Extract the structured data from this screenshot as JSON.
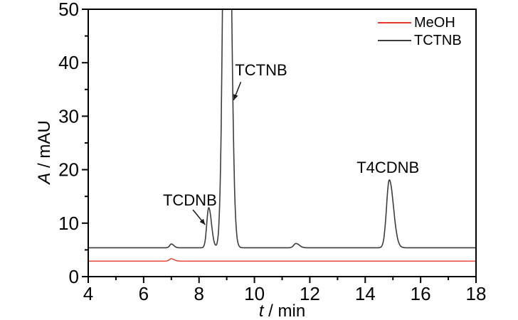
{
  "figure": {
    "background": "#ffffff",
    "axis_color": "#000000"
  },
  "chart_data": {
    "type": "line",
    "title": "",
    "xlabel": {
      "symbol": "t",
      "rest": " / min"
    },
    "ylabel": {
      "symbol": "A",
      "rest": " / mAU"
    },
    "xlim": [
      4,
      18
    ],
    "ylim": [
      0,
      50
    ],
    "x_major_ticks": [
      4,
      6,
      8,
      10,
      12,
      14,
      16,
      18
    ],
    "x_minor_ticks": [
      5,
      7,
      9,
      11,
      13,
      15,
      17
    ],
    "y_major_ticks": [
      0,
      10,
      20,
      30,
      40,
      50
    ],
    "y_minor_ticks": [
      5,
      15,
      25,
      35,
      45
    ],
    "grid": false,
    "legend": {
      "position": "top-right",
      "entries": [
        {
          "label": "MeOH",
          "color": "#e8372d"
        },
        {
          "label": "TCTNB",
          "color": "#3d3d3d"
        }
      ]
    },
    "series": [
      {
        "name": "MeOH",
        "color": "#e8372d",
        "stroke_width": 1.4,
        "baseline": 2.9,
        "peaks": [
          {
            "center": 7.0,
            "height": 0.45,
            "sigma_left": 0.07,
            "sigma_right": 0.1
          }
        ]
      },
      {
        "name": "TCTNB",
        "color": "#3d3d3d",
        "stroke_width": 1.6,
        "baseline": 5.4,
        "peaks": [
          {
            "center": 7.0,
            "height": 0.7,
            "sigma_left": 0.06,
            "sigma_right": 0.09
          },
          {
            "center": 8.35,
            "height": 7.5,
            "sigma_left": 0.07,
            "sigma_right": 0.1,
            "name": "TCDNB",
            "apex_mAU": 12.9
          },
          {
            "center": 9.0,
            "height": 120,
            "sigma_left": 0.11,
            "sigma_right": 0.13,
            "name": "TCTNB",
            "clipped_above_mAU": 50
          },
          {
            "center": 11.5,
            "height": 0.8,
            "sigma_left": 0.08,
            "sigma_right": 0.12
          },
          {
            "center": 14.87,
            "height": 12.7,
            "sigma_left": 0.1,
            "sigma_right": 0.15,
            "name": "T4CDNB",
            "apex_mAU": 18.1
          }
        ]
      }
    ],
    "annotations": [
      {
        "text": "TCDNB",
        "t": 7.67,
        "a": 13.3,
        "anchor": "middle",
        "arrow": {
          "from_t": 7.78,
          "from_a": 12.5,
          "to_t": 8.22,
          "to_a": 9.7
        }
      },
      {
        "text": "TCTNB",
        "t": 9.3,
        "a": 37.6,
        "anchor": "start",
        "arrow": {
          "from_t": 9.51,
          "from_a": 36.4,
          "to_t": 9.25,
          "to_a": 33.0
        }
      },
      {
        "text": "T4CDNB",
        "t": 14.82,
        "a": 19.4,
        "anchor": "middle",
        "arrow": null
      }
    ]
  }
}
